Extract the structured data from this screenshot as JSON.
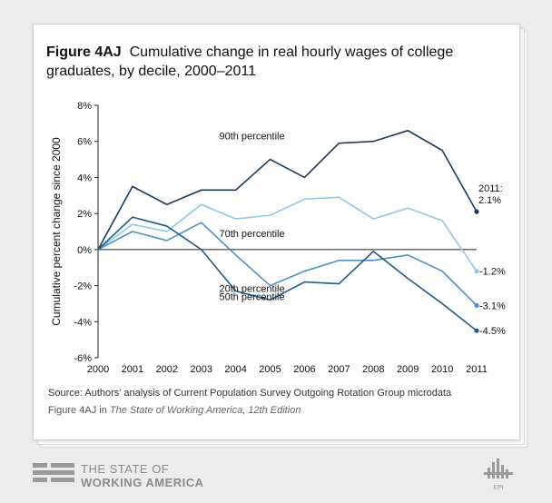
{
  "figure": {
    "label": "Figure 4AJ",
    "title": "Cumulative change in real hourly wages of college graduates, by decile, 2000–2011",
    "source": "Source: Authors' analysis of Current Population Survey Outgoing Rotation Group microdata",
    "citation_prefix": "Figure 4AJ in ",
    "citation_book": "The State of Working America, 12th Edition"
  },
  "branding": {
    "line1": "THE STATE OF",
    "line2": "WORKING AMERICA",
    "logo_text": "EPI"
  },
  "chart_data": {
    "type": "line",
    "ylabel": "Cumulative percent change since 2000",
    "xlabel": "",
    "categories": [
      "2000",
      "2001",
      "2002",
      "2003",
      "2004",
      "2005",
      "2006",
      "2007",
      "2008",
      "2009",
      "2010",
      "2011"
    ],
    "ylim": [
      -6,
      8
    ],
    "yticks": [
      "8%",
      "6%",
      "4%",
      "2%",
      "0%",
      "-2%",
      "-4%",
      "-6%"
    ],
    "grid": false,
    "series": [
      {
        "name": "90th percentile",
        "color": "#1b3a5c",
        "values": [
          0,
          3.5,
          2.5,
          3.3,
          3.3,
          5.0,
          4.0,
          5.9,
          6.0,
          6.6,
          5.5,
          2.1
        ],
        "end_label": "2011:\n2.1%",
        "marker": true
      },
      {
        "name": "70th percentile",
        "color": "#8ec8ea",
        "values": [
          0,
          1.4,
          1.0,
          2.5,
          1.7,
          1.9,
          2.8,
          2.9,
          1.7,
          2.3,
          1.6,
          -1.2
        ],
        "end_label": "-1.2%",
        "marker": true
      },
      {
        "name": "50th percentile",
        "color": "#4d8fcb",
        "values": [
          0,
          1.0,
          0.5,
          1.5,
          -0.3,
          -2.0,
          -1.2,
          -0.6,
          -0.6,
          -0.3,
          -1.2,
          -3.1
        ],
        "end_label": "-3.1%",
        "marker": true
      },
      {
        "name": "20th percentile",
        "color": "#1e5b8e",
        "values": [
          0,
          1.8,
          1.3,
          0.0,
          -2.3,
          -2.8,
          -1.8,
          -1.9,
          -0.1,
          -1.6,
          -3.0,
          -4.5
        ],
        "end_label": "-4.5%",
        "marker": true
      }
    ]
  }
}
